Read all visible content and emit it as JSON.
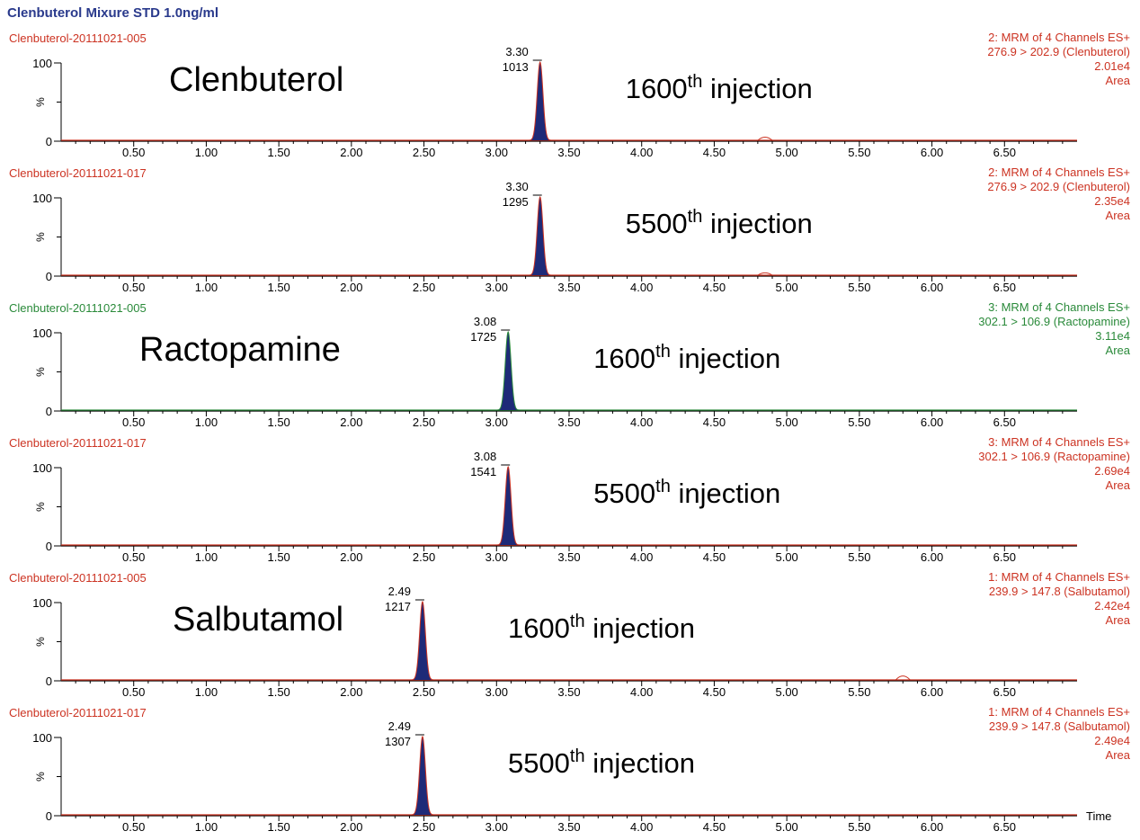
{
  "title": "Clenbuterol Mixure STD 1.0ng/ml",
  "chart_data": {
    "type": "line",
    "x_axis_name": "Time",
    "xlim": [
      0.0,
      7.0
    ],
    "x_tick_labels": [
      "0.50",
      "1.00",
      "1.50",
      "2.00",
      "2.50",
      "3.00",
      "3.50",
      "4.00",
      "4.50",
      "5.00",
      "5.50",
      "6.00",
      "6.50"
    ],
    "ylim": [
      0,
      100
    ],
    "y_tick_labels": [
      "100",
      "%",
      "0"
    ],
    "panels": [
      {
        "sample": "Clenbuterol-20111021-005",
        "channel": "2: MRM of 4 Channels ES+",
        "transition": "276.9 > 202.9 (Clenbuterol)",
        "intensity": "2.01e4",
        "mode": "Area",
        "peak_rt_label": "3.30",
        "peak_area_label": "1013",
        "peak_rt": 3.3,
        "peak_height": 100,
        "compound_label": "Clenbuterol",
        "injection_number": "1600",
        "injection_sup": "th",
        "injection_word": " injection",
        "trace_color": "#cc3322",
        "minor_peaks": [
          [
            4.85,
            4
          ]
        ]
      },
      {
        "sample": "Clenbuterol-20111021-017",
        "channel": "2: MRM of 4 Channels ES+",
        "transition": "276.9 > 202.9 (Clenbuterol)",
        "intensity": "2.35e4",
        "mode": "Area",
        "peak_rt_label": "3.30",
        "peak_area_label": "1295",
        "peak_rt": 3.3,
        "peak_height": 100,
        "compound_label": "",
        "injection_number": "5500",
        "injection_sup": "th",
        "injection_word": " injection",
        "trace_color": "#cc3322",
        "minor_peaks": [
          [
            4.85,
            3
          ]
        ]
      },
      {
        "sample": "Clenbuterol-20111021-005",
        "channel": "3: MRM of 4 Channels ES+",
        "transition": "302.1 > 106.9 (Ractopamine)",
        "intensity": "3.11e4",
        "mode": "Area",
        "peak_rt_label": "3.08",
        "peak_area_label": "1725",
        "peak_rt": 3.08,
        "peak_height": 100,
        "compound_label": "Ractopamine",
        "injection_number": "1600",
        "injection_sup": "th",
        "injection_word": " injection",
        "trace_color": "#2a8a3a",
        "minor_peaks": []
      },
      {
        "sample": "Clenbuterol-20111021-017",
        "channel": "3: MRM of 4 Channels ES+",
        "transition": "302.1 > 106.9 (Ractopamine)",
        "intensity": "2.69e4",
        "mode": "Area",
        "peak_rt_label": "3.08",
        "peak_area_label": "1541",
        "peak_rt": 3.08,
        "peak_height": 100,
        "compound_label": "",
        "injection_number": "5500",
        "injection_sup": "th",
        "injection_word": " injection",
        "trace_color": "#cc3322",
        "minor_peaks": []
      },
      {
        "sample": "Clenbuterol-20111021-005",
        "channel": "1: MRM of 4 Channels ES+",
        "transition": "239.9 > 147.8 (Salbutamol)",
        "intensity": "2.42e4",
        "mode": "Area",
        "peak_rt_label": "2.49",
        "peak_area_label": "1217",
        "peak_rt": 2.49,
        "peak_height": 100,
        "compound_label": "Salbutamol",
        "injection_number": "1600",
        "injection_sup": "th",
        "injection_word": " injection",
        "trace_color": "#cc3322",
        "minor_peaks": [
          [
            5.8,
            5
          ]
        ]
      },
      {
        "sample": "Clenbuterol-20111021-017",
        "channel": "1: MRM of 4 Channels ES+",
        "transition": "239.9 > 147.8 (Salbutamol)",
        "intensity": "2.49e4",
        "mode": "Area",
        "peak_rt_label": "2.49",
        "peak_area_label": "1307",
        "peak_rt": 2.49,
        "peak_height": 100,
        "compound_label": "",
        "injection_number": "5500",
        "injection_sup": "th",
        "injection_word": " injection",
        "trace_color": "#cc3322",
        "minor_peaks": []
      }
    ]
  }
}
